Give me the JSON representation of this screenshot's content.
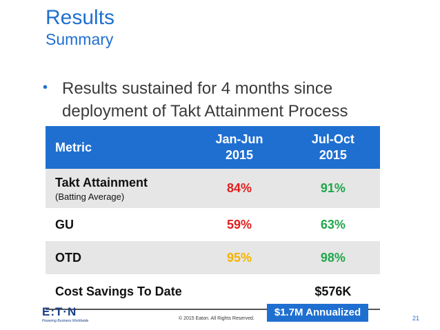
{
  "slide": {
    "title": "Results",
    "subtitle": "Summary",
    "bullet_symbol": "•",
    "bullet_text": "Results sustained for 4 months since deployment of Takt Attainment Process"
  },
  "table": {
    "headers": [
      "Metric",
      "Jan-Jun\n2015",
      "Jul-Oct\n2015"
    ],
    "rows": [
      {
        "label": "Takt Attainment",
        "sublabel": "(Batting Average)",
        "v1": "84%",
        "v2": "91%"
      },
      {
        "label": "GU",
        "v1": "59%",
        "v2": "63%"
      },
      {
        "label": "OTD",
        "v1": "95%",
        "v2": "98%"
      },
      {
        "label": "Cost Savings To Date",
        "v1": "",
        "v2": "$576K"
      }
    ]
  },
  "annualized": "$1.7M Annualized",
  "footer": {
    "logo_word": "E:T·N",
    "logo_tagline": "Powering Business Worldwide",
    "copyright": "© 2015 Eaton. All Rights Reserved.",
    "page_number": "21"
  },
  "colors": {
    "accent": "#1f6fd1",
    "red": "#e01e1e",
    "green": "#1fa64a",
    "yellow": "#f3b400",
    "row_shade": "#e6e6e6"
  }
}
